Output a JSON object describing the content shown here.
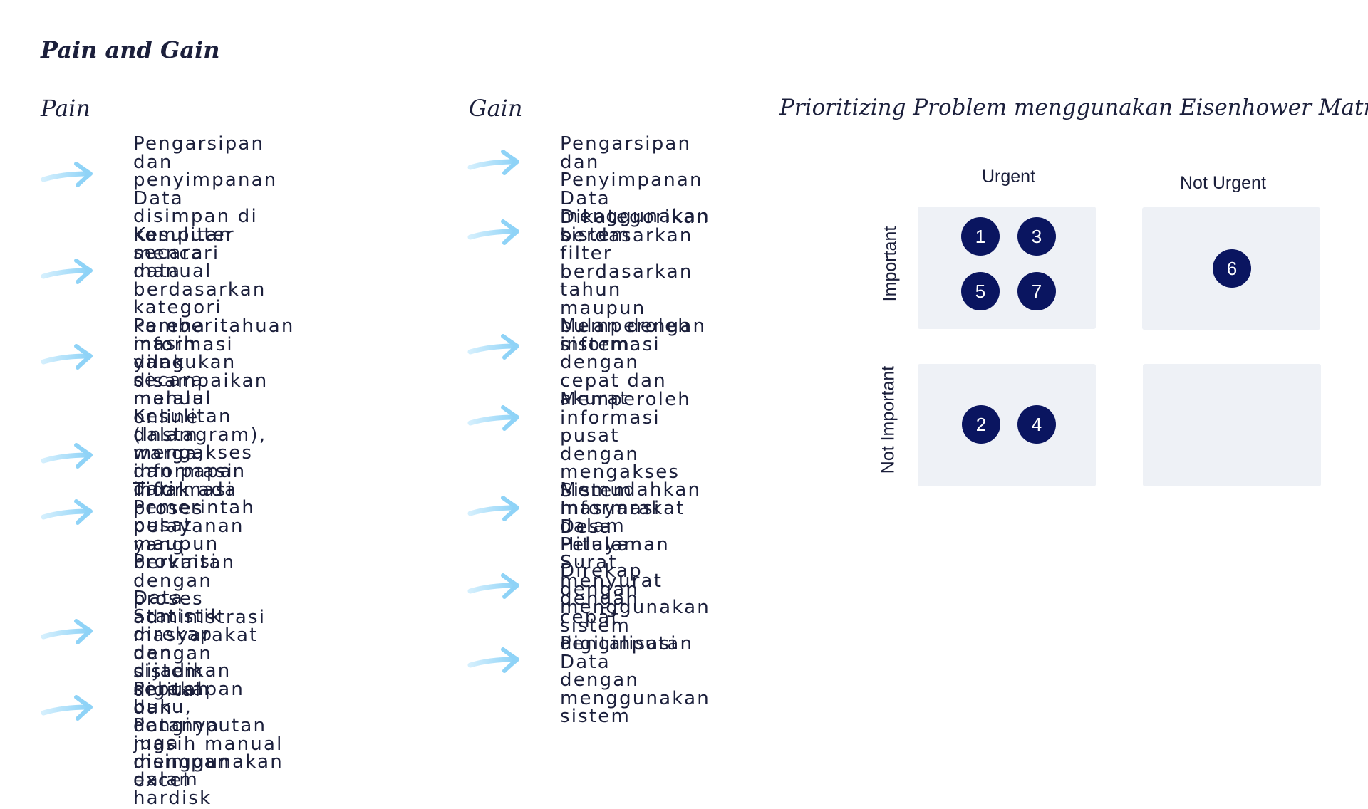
{
  "title": "Pain and Gain",
  "pain": {
    "heading": "Pain",
    "items": [
      "Pengarsipan dan\npenyimpanan Data\ndisimpan di komputer\nsecara manual",
      "Kesulitan mencari data\nberdasarkan kategori\nkarena masih dilakukan\nsecara manual",
      "Pemberitahuan informasi\nyang disampaikan melalui\nonline (Instagram), warga,\ndan papan informasi",
      "Kesulitan dalam mengakses\ninformasi dari Pemerintah\npusat maupun Provinsi",
      "Tidak ada proses pelayanan\nyang berkaitan dengan\nproses administrasi\nmasyarakat dengan sistem\ndigital",
      "Data Statistik direkap dan\ndijadikan sebuah buku,\ndatanya juga disimpan\ndalam hardisk",
      "Perekapan dan Penginputan\nmasih manual\nmenggunakan excel"
    ]
  },
  "gain": {
    "heading": "Gain",
    "items": [
      "Pengarsipan dan\nPenyimpanan Data\nmenggunakan sistem",
      "Dikategorikan\nberdasarkan filter\nberdasarkan tahun\nmaupun bulan dengan\nsistem",
      "Memperoleh informasi\ndengan cepat dan akurat",
      "Memperoleh informasi\npusat dengan mengakses\nSistem Informasi Desa\nHitulama",
      "Memudahkan masyarakat\ndalam Pelayanan Surat\nmenyurat dengan cepat",
      "Direkap dengan\nmenggunakan sistem\ndigitalisasi",
      "Penginputan Data\ndengan menggunakan\nsistem"
    ]
  },
  "matrix": {
    "title": "Prioritizing Problem menggunakan Eisenhower Matrix",
    "col_labels": [
      "Urgent",
      "Not Urgent"
    ],
    "row_labels": [
      "Important",
      "Not Important"
    ],
    "quadrants": {
      "important_urgent": [
        "1",
        "3",
        "5",
        "7"
      ],
      "important_not_urgent": [
        "6"
      ],
      "not_important_urgent": [
        "2",
        "4"
      ],
      "not_important_not_urgent": []
    },
    "badge_color": "#0a1560",
    "quadrant_color": "#eef1f6"
  },
  "colors": {
    "text": "#1b1f3b",
    "arrow": "#8fd3f7"
  },
  "icons": {
    "arrow": "right-arrow-icon"
  }
}
